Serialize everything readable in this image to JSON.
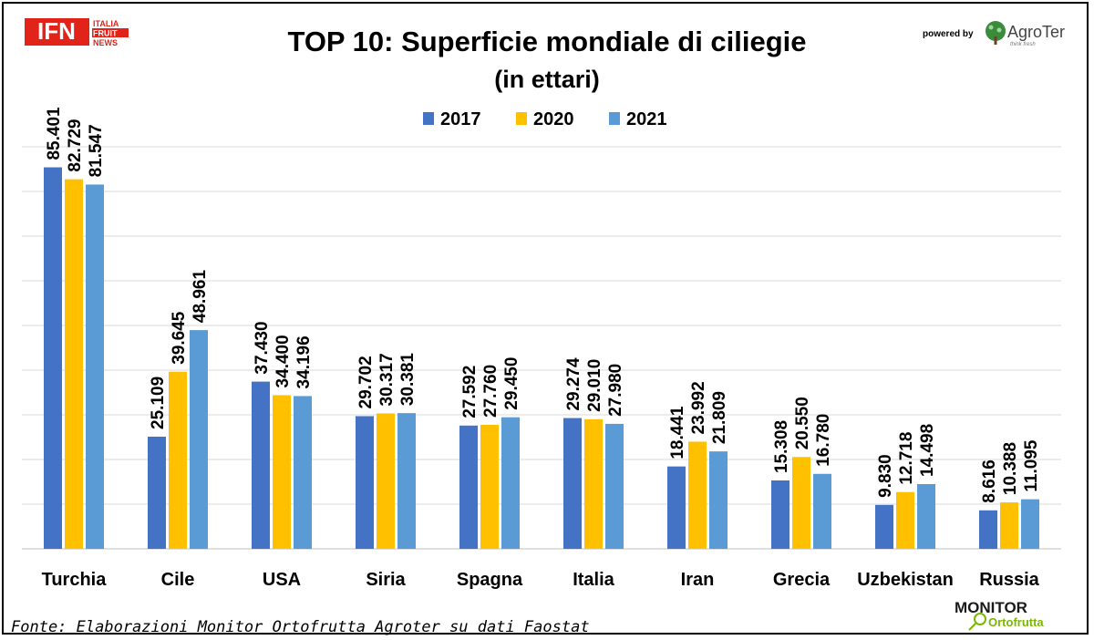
{
  "header": {
    "ifn_logo": "IFN",
    "ifn_sub_lines": [
      "ITALIA",
      "FRUIT",
      "NEWS"
    ],
    "powered_by": "powered by",
    "sponsor": "AgroTer",
    "sponsor_tagline": "think fresh"
  },
  "footer": {
    "source": "Fonte: Elaborazioni Monitor Ortofrutta Agroter su dati Faostat",
    "monitor_logo_line1": "MONITOR",
    "monitor_logo_line2": "Ortofrutta"
  },
  "colors": {
    "s2017": "#4472C4",
    "s2020": "#FFC000",
    "s2021": "#5B9BD5",
    "grid": "#D9D9D9",
    "ifn_red": "#E2231A",
    "agroter_green": "#3A8C3A"
  },
  "chart_data": {
    "type": "bar",
    "title": "TOP 10: Superficie mondiale di ciliegie",
    "subtitle": "(in ettari)",
    "categories": [
      "Turchia",
      "Cile",
      "USA",
      "Siria",
      "Spagna",
      "Italia",
      "Iran",
      "Grecia",
      "Uzbekistan",
      "Russia"
    ],
    "series": [
      {
        "name": "2017",
        "values": [
          85401,
          25109,
          37430,
          29702,
          27592,
          29274,
          18441,
          15308,
          9830,
          8616
        ],
        "labels": [
          "85.401",
          "25.109",
          "37.430",
          "29.702",
          "27.592",
          "29.274",
          "18.441",
          "15.308",
          "9.830",
          "8.616"
        ]
      },
      {
        "name": "2020",
        "values": [
          82729,
          39645,
          34400,
          30317,
          27760,
          29010,
          23992,
          20550,
          12718,
          10388
        ],
        "labels": [
          "82.729",
          "39.645",
          "34.400",
          "30.317",
          "27.760",
          "29.010",
          "23.992",
          "20.550",
          "12.718",
          "10.388"
        ]
      },
      {
        "name": "2021",
        "values": [
          81547,
          48961,
          34196,
          30381,
          29450,
          27980,
          21809,
          16780,
          14498,
          11095
        ],
        "labels": [
          "81.547",
          "48.961",
          "34.196",
          "30.381",
          "29.450",
          "27.980",
          "21.809",
          "16.780",
          "14.498",
          "11.095"
        ]
      }
    ],
    "ylim": [
      0,
      90000
    ],
    "grid": true,
    "legend": "top-center",
    "xlabel": "",
    "ylabel": ""
  }
}
